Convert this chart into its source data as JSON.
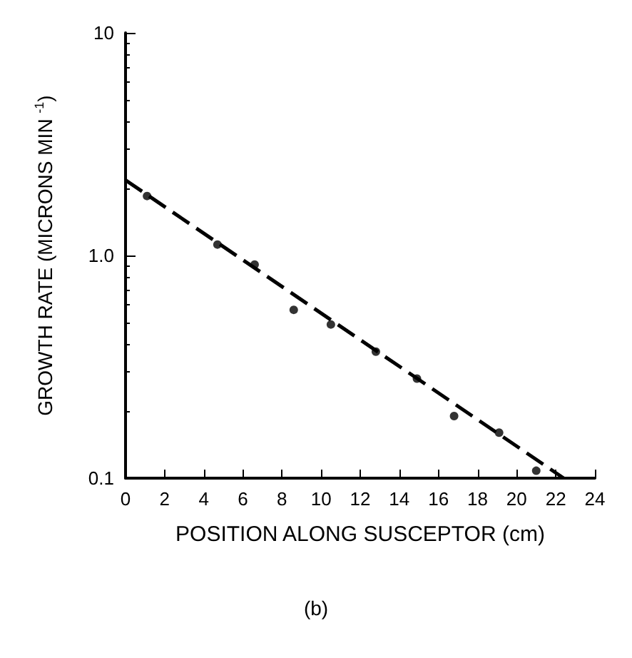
{
  "chart_data": {
    "type": "scatter",
    "xlabel": "POSITION ALONG SUSCEPTOR (cm)",
    "ylabel": "GROWTH RATE (MICRONS MIN $^{-1}$)",
    "annotations": [
      "(b)"
    ],
    "log": "y",
    "grid": false,
    "xlim": [
      0,
      24
    ],
    "xticks": [
      0,
      2,
      4,
      6,
      8,
      10,
      12,
      14,
      16,
      18,
      20,
      22,
      24
    ],
    "ylim": [
      0.1,
      10
    ],
    "yticks": [
      0.1,
      {
        "value": 1,
        "label": "1.0"
      },
      10
    ],
    "series": [
      {
        "type": "scatter",
        "color": "#000000",
        "marker": "circle",
        "x": [
          1.1,
          4.7,
          6.6,
          8.6,
          10.5,
          12.8,
          14.9,
          16.8,
          19.1,
          21.0
        ],
        "values": [
          1.85,
          1.12,
          0.91,
          0.57,
          0.49,
          0.37,
          0.28,
          0.19,
          0.16,
          0.108
        ]
      },
      {
        "type": "line",
        "color": "#000000",
        "marker": "none",
        "line_style": "dashed",
        "x": [
          0,
          22.4
        ],
        "values": [
          2.18,
          0.1
        ]
      }
    ]
  }
}
